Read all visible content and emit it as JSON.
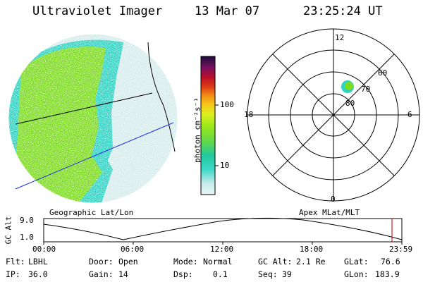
{
  "header": {
    "title": "Ultraviolet Imager",
    "date": "13 Mar 07",
    "time": "23:25:24 UT"
  },
  "colorbar": {
    "label": "photon cm⁻²s⁻¹",
    "ticks": [
      "100",
      "10"
    ]
  },
  "polar_plot": {
    "mlt_labels": [
      "12",
      "18",
      "6",
      "0"
    ],
    "lat_labels": [
      "60",
      "70",
      "80"
    ]
  },
  "timeline": {
    "left_caption": "Geographic Lat/Lon",
    "right_caption": "Apex MLat/MLT",
    "axis_label": "GC Alt",
    "y_ticks": [
      "9.0",
      "1.0"
    ],
    "x_ticks": [
      "00:00",
      "06:00",
      "12:00",
      "18:00",
      "23:59"
    ]
  },
  "info": {
    "filter": {
      "label": "Flt:",
      "value": "LBHL"
    },
    "ip": {
      "label": "IP:",
      "value": "36.0"
    },
    "door": {
      "label": "Door:",
      "value": "Open"
    },
    "gain": {
      "label": "Gain:",
      "value": "14"
    },
    "mode": {
      "label": "Mode:",
      "value": "Normal"
    },
    "dsp": {
      "label": "Dsp:",
      "value": "0.1"
    },
    "gcalt": {
      "label": "GC Alt:",
      "value": "2.1 Re"
    },
    "seq": {
      "label": "Seq:",
      "value": "39"
    },
    "glat": {
      "label": "GLat:",
      "value": "76.6"
    },
    "glon": {
      "label": "GLon:",
      "value": "183.9"
    }
  },
  "colors": {
    "earth_emission": "#7ddc1f",
    "cyan_emission": "#2fd0c6",
    "pale_emission": "#cde9ea",
    "blue_line": "#1a33e0",
    "red_marker": "#cc2222"
  }
}
